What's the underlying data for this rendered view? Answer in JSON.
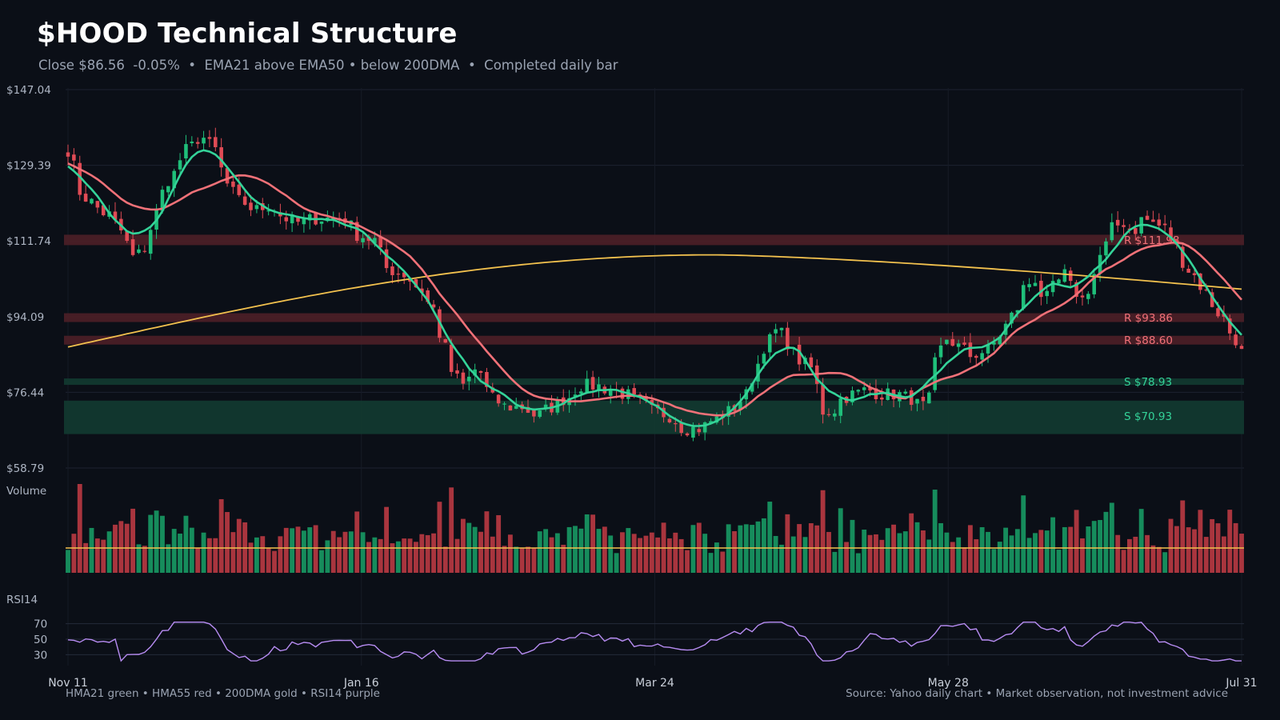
{
  "header": {
    "title": "$HOOD Technical Structure",
    "subtitle": "Close $86.56  -0.05%  •  EMA21 above EMA50 • below 200DMA  •  Completed daily bar"
  },
  "footer": {
    "legend_note": "HMA21 green • HMA55 red • 200DMA gold  •  RSI14 purple",
    "source_note": "Source: Yahoo daily chart • Market observation, not investment advice"
  },
  "colors": {
    "background": "#0b0f17",
    "up": "#1fbf7a",
    "down": "#e04b55",
    "hma21": "#34d399",
    "hma55": "#f07178",
    "dma200": "#f2c14e",
    "rsi": "#b78cf2",
    "resistance_band": "#4a1f26",
    "support_band": "#12392f"
  },
  "chart_data": {
    "type": "candlestick",
    "title": "$HOOD Technical Structure",
    "x_range": [
      "Nov 11",
      "Jul 31"
    ],
    "x_tick_labels": [
      "Nov 11",
      "Jan 16",
      "Mar 24",
      "May 28",
      "Jul 31"
    ],
    "y_tick_labels": [
      "$147.04",
      "$129.39",
      "$111.74",
      "$94.09",
      "$76.44",
      "$58.79"
    ],
    "ylim": [
      58.79,
      147.04
    ],
    "bar_count": 200,
    "grid": true,
    "price_anchors": [
      [
        0,
        133
      ],
      [
        3,
        122
      ],
      [
        8,
        118
      ],
      [
        11,
        114
      ],
      [
        13,
        108
      ],
      [
        15,
        109
      ],
      [
        17,
        115
      ],
      [
        19,
        123
      ],
      [
        21,
        127
      ],
      [
        24,
        133
      ],
      [
        27,
        136
      ],
      [
        30,
        133
      ],
      [
        32,
        125
      ],
      [
        35,
        121
      ],
      [
        38,
        119
      ],
      [
        41,
        120
      ],
      [
        44,
        117
      ],
      [
        47,
        116
      ],
      [
        50,
        117
      ],
      [
        53,
        117
      ],
      [
        56,
        117
      ],
      [
        59,
        113
      ],
      [
        62,
        112
      ],
      [
        65,
        105
      ],
      [
        68,
        104
      ],
      [
        71,
        101
      ],
      [
        74,
        96
      ],
      [
        76,
        88
      ],
      [
        78,
        81
      ],
      [
        80,
        78
      ],
      [
        83,
        82
      ],
      [
        86,
        75
      ],
      [
        89,
        73
      ],
      [
        92,
        73
      ],
      [
        95,
        71
      ],
      [
        98,
        73
      ],
      [
        101,
        75
      ],
      [
        104,
        78
      ],
      [
        107,
        78
      ],
      [
        110,
        77
      ],
      [
        113,
        76
      ],
      [
        116,
        74
      ],
      [
        119,
        72
      ],
      [
        122,
        71
      ],
      [
        125,
        68
      ],
      [
        128,
        68
      ],
      [
        131,
        70
      ],
      [
        134,
        72
      ],
      [
        137,
        75
      ],
      [
        139,
        80
      ],
      [
        141,
        87
      ],
      [
        144,
        91
      ],
      [
        146,
        88
      ],
      [
        148,
        84
      ],
      [
        151,
        82
      ],
      [
        153,
        72
      ],
      [
        155,
        72
      ],
      [
        157,
        75
      ],
      [
        159,
        76
      ],
      [
        162,
        77
      ],
      [
        165,
        76
      ],
      [
        168,
        76
      ],
      [
        171,
        75
      ],
      [
        173,
        73
      ],
      [
        175,
        75
      ],
      [
        176,
        84
      ],
      [
        178,
        89
      ],
      [
        181,
        87
      ],
      [
        183,
        85
      ],
      [
        186,
        86
      ],
      [
        188,
        88
      ],
      [
        190,
        92
      ],
      [
        192,
        95
      ],
      [
        194,
        101
      ],
      [
        196,
        103
      ],
      [
        198,
        98
      ],
      [
        200,
        101
      ],
      [
        202,
        104
      ],
      [
        204,
        100
      ],
      [
        206,
        98
      ],
      [
        208,
        104
      ],
      [
        210,
        110
      ],
      [
        212,
        115
      ],
      [
        214,
        116
      ],
      [
        216,
        114
      ],
      [
        218,
        117
      ],
      [
        220,
        116
      ],
      [
        222,
        115
      ],
      [
        224,
        112
      ],
      [
        226,
        107
      ],
      [
        228,
        104
      ],
      [
        230,
        101
      ],
      [
        232,
        97
      ],
      [
        234,
        94
      ],
      [
        236,
        90
      ],
      [
        238,
        86.56
      ]
    ],
    "series": [
      {
        "name": "HMA21"
      },
      {
        "name": "HMA55"
      },
      {
        "name": "200DMA"
      },
      {
        "name": "RSI14"
      }
    ],
    "levels": [
      {
        "kind": "resistance",
        "label": "R $111.98",
        "price": 111.98
      },
      {
        "kind": "resistance",
        "label": "R $93.86",
        "price": 93.86
      },
      {
        "kind": "resistance",
        "label": "R $88.60",
        "price": 88.6
      },
      {
        "kind": "support",
        "label": "S $78.93",
        "price": 78.93
      },
      {
        "kind": "support",
        "label": "S $70.93",
        "price": 70.93
      }
    ],
    "volume": {
      "label": "Volume"
    },
    "rsi": {
      "label": "RSI14",
      "ticks": [
        70,
        50,
        30
      ],
      "ylim": [
        20,
        80
      ]
    },
    "last_close": 86.56
  }
}
